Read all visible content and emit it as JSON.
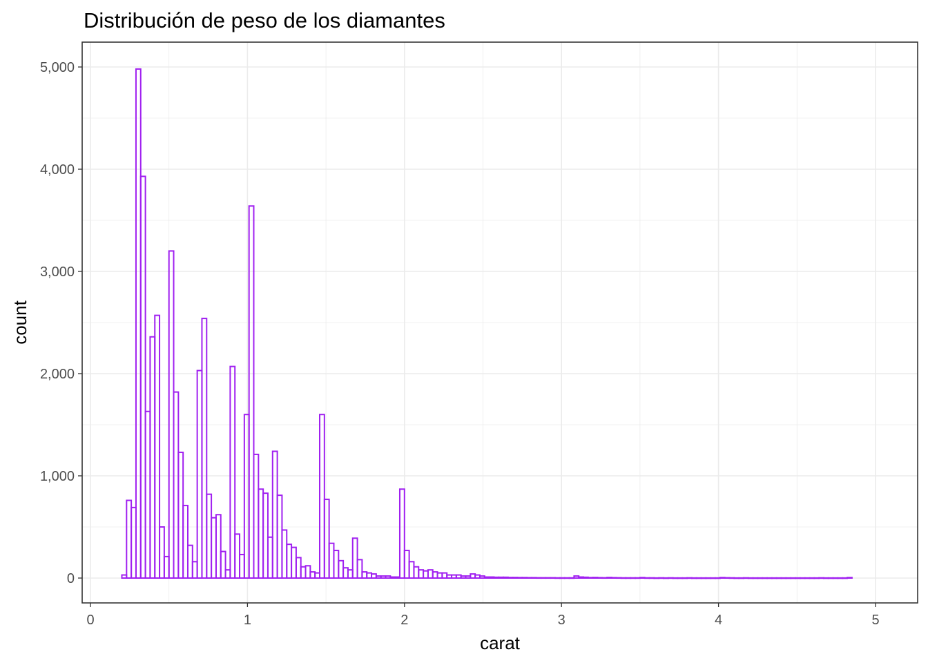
{
  "chart_data": {
    "type": "bar",
    "title": "Distribución de peso de los diamantes",
    "xlabel": "carat",
    "ylabel": "count",
    "xlim": [
      0,
      5.05
    ],
    "ylim": [
      0,
      5000
    ],
    "x_ticks": [
      0,
      1,
      2,
      3,
      4,
      5
    ],
    "x_tick_labels": [
      "0",
      "1",
      "2",
      "3",
      "4",
      "5"
    ],
    "y_ticks": [
      0,
      1000,
      2000,
      3000,
      4000,
      5000
    ],
    "y_tick_labels": [
      "0",
      "1,000",
      "2,000",
      "3,000",
      "4,000",
      "5,000"
    ],
    "grid": true,
    "bar_color": "#a020f0",
    "bin_width": 0.03,
    "bin_start": 0.2,
    "values": [
      30,
      760,
      690,
      4980,
      3930,
      1630,
      2360,
      2570,
      500,
      210,
      3200,
      1820,
      1230,
      710,
      320,
      160,
      2030,
      2540,
      820,
      590,
      620,
      260,
      80,
      2070,
      430,
      230,
      1600,
      3640,
      1210,
      870,
      830,
      400,
      1240,
      810,
      470,
      330,
      300,
      200,
      110,
      120,
      60,
      50,
      1600,
      770,
      340,
      270,
      170,
      100,
      80,
      390,
      180,
      60,
      50,
      40,
      20,
      20,
      20,
      10,
      10,
      870,
      270,
      160,
      110,
      80,
      70,
      80,
      60,
      50,
      50,
      30,
      30,
      30,
      20,
      20,
      40,
      30,
      20,
      10,
      10,
      8,
      8,
      8,
      6,
      6,
      5,
      5,
      4,
      4,
      3,
      3,
      3,
      3,
      2,
      2,
      2,
      2,
      20,
      10,
      8,
      5,
      6,
      4,
      3,
      6,
      4,
      3,
      2,
      2,
      2,
      2,
      5,
      2,
      2,
      1,
      2,
      1,
      2,
      1,
      1,
      1,
      2,
      1,
      1,
      1,
      1,
      1,
      1,
      5,
      3,
      2,
      1,
      1,
      2,
      1,
      1,
      1,
      1,
      1,
      1,
      1,
      1,
      1,
      1,
      1,
      1,
      1,
      1,
      1,
      2,
      1,
      1,
      1,
      1,
      1,
      5
    ]
  }
}
